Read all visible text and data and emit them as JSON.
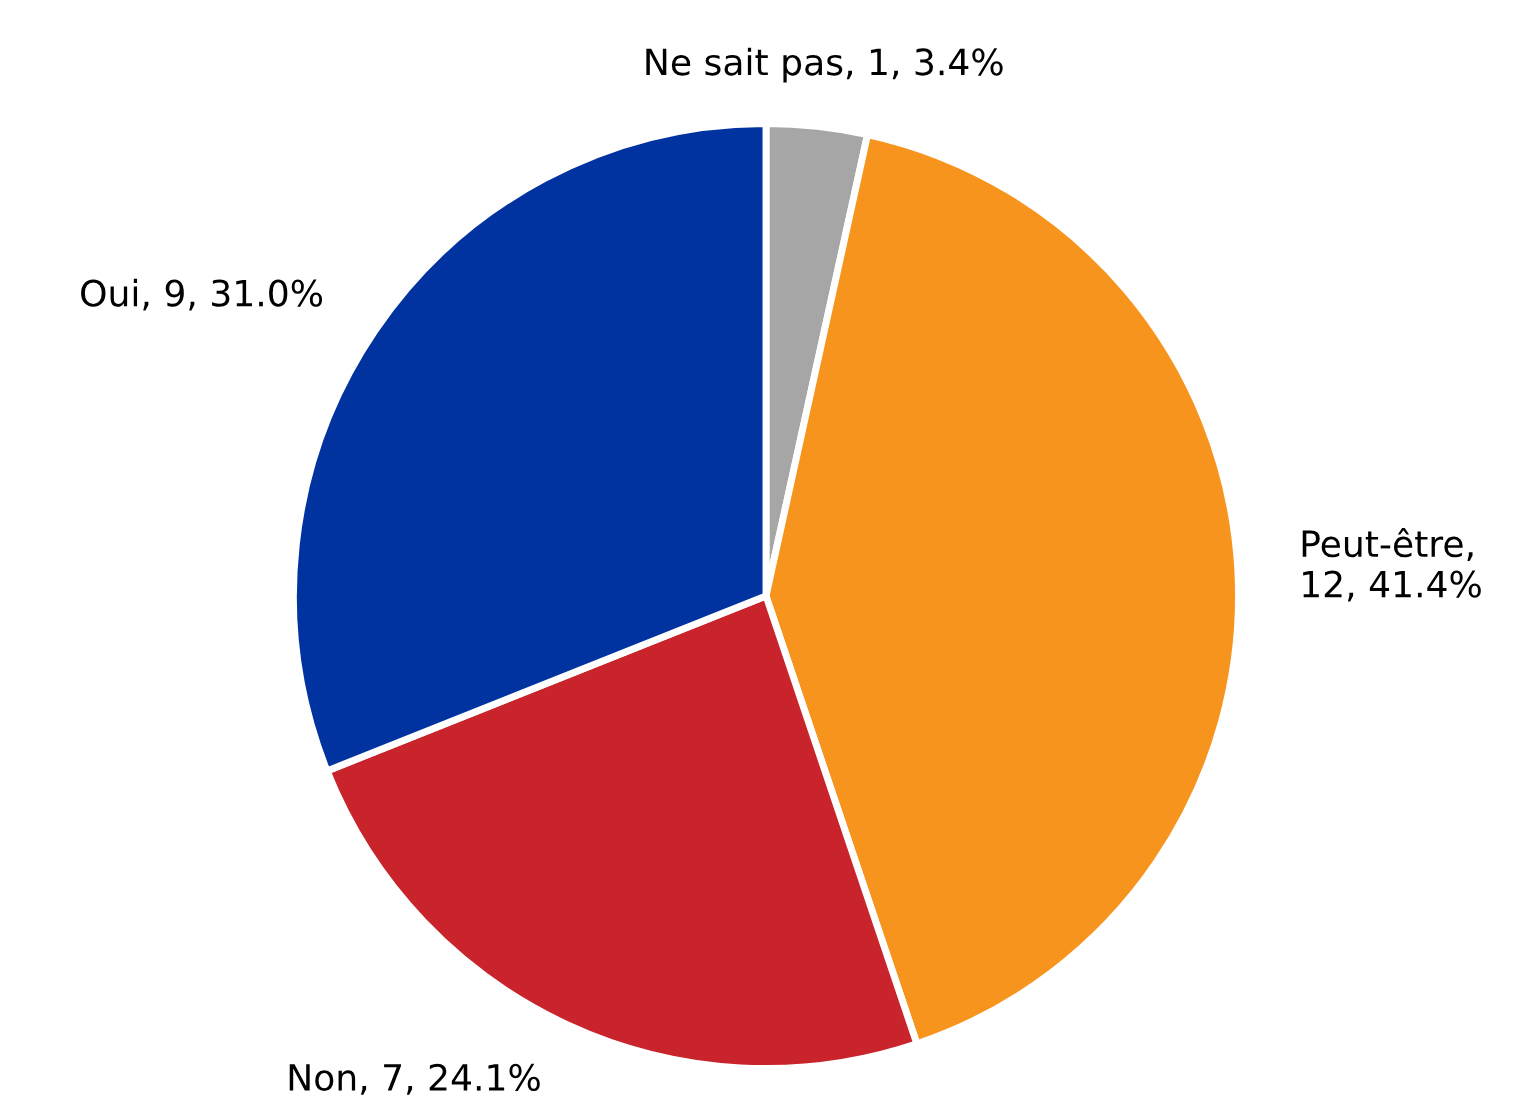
{
  "chart_data": {
    "type": "pie",
    "categories": [
      "Ne sait pas",
      "Peut-être",
      "Non",
      "Oui"
    ],
    "values": [
      1,
      12,
      7,
      9
    ],
    "value_labels": [
      ", 1, 3.4%",
      ", 12, 41.4%",
      ", 7, 24.1%",
      ", 9, 31.0%"
    ],
    "colors": [
      "#a6a6a6",
      "#f7941d",
      "#c9242b",
      "#0033a0"
    ]
  }
}
